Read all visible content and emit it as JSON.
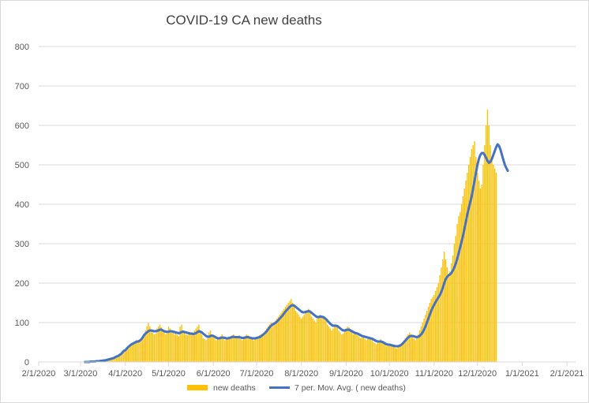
{
  "chart_data": {
    "type": "bar",
    "title": "COVID-19 CA new deaths",
    "xlabel": "",
    "ylabel": "",
    "ylim": [
      0,
      800
    ],
    "y_ticks": [
      0,
      100,
      200,
      300,
      400,
      500,
      600,
      700,
      800
    ],
    "x_range": [
      "2020-02-01",
      "2021-02-07"
    ],
    "x_ticks": [
      {
        "date": "2020-02-01",
        "label": "2/1/2020"
      },
      {
        "date": "2020-03-01",
        "label": "3/1/2020"
      },
      {
        "date": "2020-04-01",
        "label": "4/1/2020"
      },
      {
        "date": "2020-05-01",
        "label": "5/1/2020"
      },
      {
        "date": "2020-06-01",
        "label": "6/1/2020"
      },
      {
        "date": "2020-07-01",
        "label": "7/1/2020"
      },
      {
        "date": "2020-08-01",
        "label": "8/1/2020"
      },
      {
        "date": "2020-09-01",
        "label": "9/1/2020"
      },
      {
        "date": "2020-10-01",
        "label": "10/1/2020"
      },
      {
        "date": "2020-11-01",
        "label": "11/1/2020"
      },
      {
        "date": "2020-12-01",
        "label": "12/1/2020"
      },
      {
        "date": "2021-01-01",
        "label": "1/1/2021"
      },
      {
        "date": "2021-02-01",
        "label": "2/1/2021"
      }
    ],
    "grid": true,
    "legend_position": "bottom",
    "colors": {
      "bars": "#FFC000",
      "line": "#4472C4",
      "grid": "#d9d9d9",
      "axis": "#d9d9d9"
    },
    "series": [
      {
        "name": "new deaths",
        "kind": "bar",
        "start_date": "2020-03-04",
        "values": [
          1,
          0,
          0,
          1,
          0,
          1,
          1,
          1,
          0,
          2,
          1,
          2,
          1,
          3,
          2,
          4,
          3,
          6,
          5,
          8,
          10,
          12,
          10,
          15,
          18,
          20,
          22,
          25,
          30,
          32,
          35,
          40,
          42,
          45,
          48,
          52,
          55,
          50,
          58,
          60,
          65,
          70,
          80,
          90,
          100,
          90,
          80,
          75,
          70,
          72,
          85,
          90,
          95,
          88,
          80,
          75,
          70,
          72,
          90,
          85,
          80,
          75,
          70,
          72,
          68,
          65,
          90,
          95,
          80,
          75,
          70,
          68,
          72,
          75,
          70,
          68,
          80,
          85,
          90,
          95,
          75,
          70,
          60,
          58,
          55,
          60,
          75,
          80,
          70,
          65,
          60,
          55,
          58,
          62,
          65,
          70,
          60,
          55,
          58,
          60,
          62,
          65,
          68,
          70,
          60,
          62,
          65,
          68,
          58,
          55,
          60,
          65,
          70,
          68,
          62,
          60,
          58,
          55,
          60,
          62,
          65,
          68,
          70,
          72,
          75,
          80,
          85,
          90,
          95,
          100,
          98,
          100,
          105,
          110,
          115,
          120,
          125,
          130,
          135,
          140,
          145,
          150,
          155,
          160,
          150,
          140,
          130,
          125,
          120,
          115,
          110,
          115,
          120,
          125,
          130,
          135,
          125,
          115,
          110,
          105,
          100,
          110,
          115,
          120,
          118,
          115,
          110,
          105,
          95,
          90,
          85,
          80,
          85,
          90,
          95,
          90,
          80,
          75,
          70,
          72,
          80,
          85,
          90,
          88,
          80,
          75,
          70,
          72,
          75,
          68,
          65,
          60,
          62,
          65,
          58,
          55,
          58,
          60,
          62,
          55,
          50,
          48,
          45,
          50,
          55,
          58,
          52,
          48,
          45,
          40,
          42,
          45,
          42,
          40,
          38,
          36,
          35,
          40,
          42,
          45,
          50,
          55,
          60,
          65,
          70,
          75,
          70,
          65,
          60,
          55,
          60,
          70,
          80,
          90,
          100,
          110,
          120,
          130,
          140,
          150,
          160,
          165,
          170,
          180,
          190,
          200,
          220,
          240,
          260,
          280,
          260,
          240,
          220,
          230,
          250,
          270,
          300,
          320,
          350,
          370,
          380,
          400,
          420,
          440,
          460,
          480,
          500,
          520,
          540,
          550,
          560,
          520,
          480,
          460,
          440,
          450,
          500,
          550,
          600,
          640,
          600,
          550,
          520,
          500,
          490,
          480
        ]
      },
      {
        "name": "7 per. Mov. Avg. ( new deaths)",
        "kind": "line",
        "start_date": "2020-03-04",
        "values": [
          0,
          0,
          0,
          0,
          1,
          1,
          1,
          1,
          2,
          2,
          2,
          3,
          3,
          4,
          4,
          5,
          6,
          7,
          8,
          9,
          10,
          12,
          14,
          15,
          18,
          20,
          24,
          28,
          30,
          34,
          38,
          41,
          44,
          46,
          48,
          50,
          52,
          52,
          54,
          57,
          62,
          68,
          72,
          75,
          78,
          80,
          80,
          79,
          78,
          78,
          79,
          80,
          82,
          82,
          80,
          78,
          77,
          76,
          77,
          78,
          78,
          77,
          76,
          75,
          74,
          73,
          74,
          76,
          77,
          76,
          75,
          74,
          73,
          72,
          72,
          71,
          72,
          73,
          76,
          78,
          77,
          75,
          72,
          69,
          66,
          64,
          64,
          66,
          67,
          66,
          64,
          62,
          60,
          60,
          61,
          62,
          62,
          61,
          60,
          60,
          61,
          62,
          63,
          64,
          63,
          63,
          63,
          63,
          62,
          61,
          61,
          62,
          63,
          63,
          62,
          61,
          60,
          60,
          60,
          61,
          62,
          63,
          65,
          68,
          71,
          74,
          78,
          83,
          88,
          92,
          95,
          97,
          99,
          102,
          106,
          110,
          114,
          118,
          123,
          128,
          132,
          136,
          140,
          143,
          144,
          143,
          140,
          137,
          134,
          131,
          128,
          126,
          126,
          127,
          128,
          129,
          128,
          125,
          122,
          119,
          116,
          114,
          114,
          115,
          115,
          114,
          112,
          109,
          105,
          101,
          97,
          94,
          92,
          92,
          92,
          91,
          88,
          85,
          82,
          80,
          80,
          81,
          82,
          82,
          80,
          78,
          76,
          74,
          73,
          72,
          70,
          68,
          66,
          65,
          64,
          63,
          62,
          61,
          60,
          59,
          57,
          55,
          53,
          52,
          52,
          52,
          51,
          49,
          47,
          45,
          44,
          44,
          43,
          42,
          41,
          40,
          40,
          40,
          41,
          43,
          46,
          50,
          54,
          58,
          62,
          65,
          66,
          66,
          65,
          64,
          63,
          64,
          66,
          70,
          75,
          82,
          90,
          100,
          110,
          120,
          130,
          138,
          145,
          152,
          158,
          164,
          170,
          178,
          188,
          200,
          210,
          216,
          220,
          222,
          226,
          232,
          240,
          250,
          262,
          276,
          290,
          305,
          320,
          338,
          356,
          374,
          390,
          405,
          420,
          440,
          460,
          480,
          500,
          515,
          525,
          530,
          530,
          525,
          518,
          510,
          505,
          508,
          515,
          525,
          535,
          545,
          552,
          548,
          538,
          525,
          512,
          500,
          492,
          485
        ]
      }
    ]
  }
}
